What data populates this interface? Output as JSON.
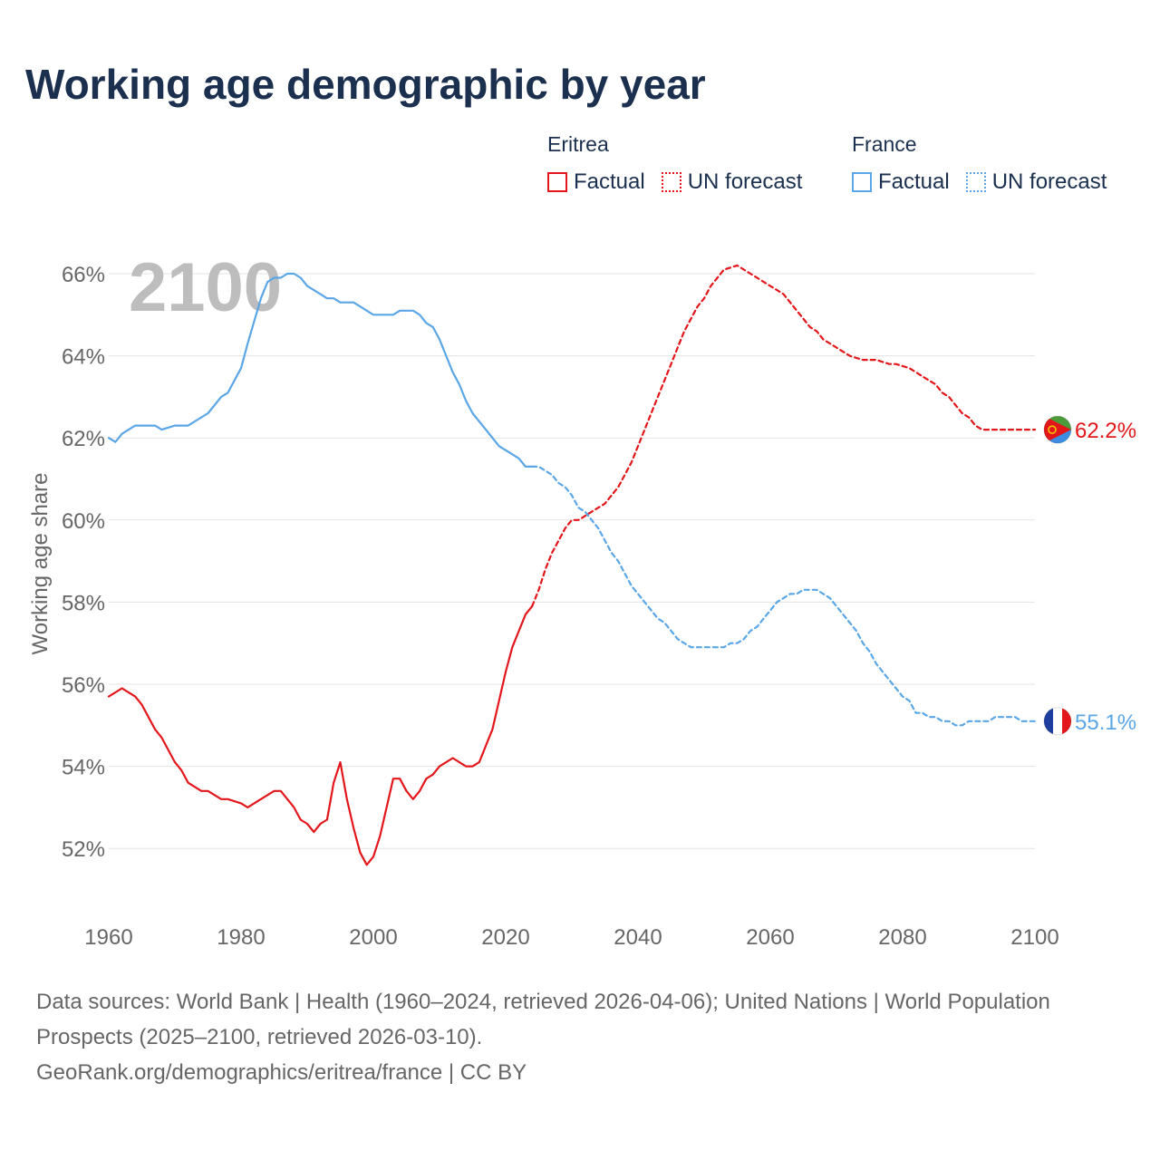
{
  "title": "Working age demographic by year",
  "legend": {
    "groups": [
      {
        "name": "Eritrea",
        "factual": "Factual",
        "forecast": "UN forecast",
        "color": "#e3161b"
      },
      {
        "name": "France",
        "factual": "Factual",
        "forecast": "UN forecast",
        "color": "#5aa6e6"
      }
    ]
  },
  "year_watermark": "2100",
  "source": {
    "line1": "Data sources: World Bank | Health (1960–2024, retrieved 2026-04-06); United Nations | World Population Prospects (2025–2100, retrieved 2026-03-10).",
    "line2": "GeoRank.org/demographics/eritrea/france | CC BY"
  },
  "chart_data": {
    "type": "line",
    "title": "Working age demographic by year",
    "xlabel": "",
    "ylabel": "Working age share",
    "xlim": [
      1960,
      2100
    ],
    "ylim": [
      50.6,
      66.6
    ],
    "x_ticks": [
      1960,
      1980,
      2000,
      2020,
      2040,
      2060,
      2080,
      2100
    ],
    "x_tick_labels": [
      "1960",
      "1980",
      "2000",
      "2020",
      "2040",
      "2060",
      "2080",
      "2100"
    ],
    "y_ticks": [
      52,
      54,
      56,
      58,
      60,
      62,
      64,
      66
    ],
    "y_tick_labels": [
      "52%",
      "54%",
      "56%",
      "58%",
      "60%",
      "62%",
      "64%",
      "66%"
    ],
    "grid": true,
    "series": [
      {
        "name": "Eritrea",
        "segment": "Factual",
        "color": "#e3161b",
        "dashed": false,
        "x": [
          1960,
          1962,
          1964,
          1965,
          1967,
          1968,
          1970,
          1971,
          1972,
          1974,
          1975,
          1977,
          1978,
          1980,
          1981,
          1983,
          1985,
          1986,
          1987,
          1988,
          1989,
          1990,
          1991,
          1992,
          1993,
          1994,
          1995,
          1996,
          1997,
          1998,
          1999,
          2000,
          2001,
          2002,
          2003,
          2004,
          2005,
          2006,
          2007,
          2008,
          2009,
          2010,
          2011,
          2012,
          2013,
          2014,
          2015,
          2016,
          2017,
          2018,
          2019,
          2020,
          2021,
          2022,
          2023,
          2024
        ],
        "y": [
          55.7,
          55.9,
          55.7,
          55.5,
          54.9,
          54.7,
          54.1,
          53.9,
          53.6,
          53.4,
          53.4,
          53.2,
          53.2,
          53.1,
          53.0,
          53.2,
          53.4,
          53.4,
          53.2,
          53.0,
          52.7,
          52.6,
          52.4,
          52.6,
          52.7,
          53.6,
          54.1,
          53.2,
          52.5,
          51.9,
          51.6,
          51.8,
          52.3,
          53.0,
          53.7,
          53.7,
          53.4,
          53.2,
          53.4,
          53.7,
          53.8,
          54.0,
          54.1,
          54.2,
          54.1,
          54.0,
          54.0,
          54.1,
          54.5,
          54.9,
          55.6,
          56.3,
          56.9,
          57.3,
          57.7,
          57.9
        ]
      },
      {
        "name": "Eritrea",
        "segment": "UN forecast",
        "color": "#e3161b",
        "dashed": true,
        "x": [
          2024,
          2025,
          2026,
          2027,
          2028,
          2029,
          2030,
          2031,
          2032,
          2033,
          2034,
          2035,
          2036,
          2037,
          2038,
          2039,
          2040,
          2041,
          2042,
          2043,
          2044,
          2045,
          2046,
          2047,
          2048,
          2049,
          2050,
          2051,
          2052,
          2053,
          2054,
          2055,
          2056,
          2057,
          2058,
          2059,
          2060,
          2061,
          2062,
          2063,
          2064,
          2065,
          2066,
          2067,
          2068,
          2069,
          2070,
          2071,
          2072,
          2073,
          2074,
          2075,
          2076,
          2077,
          2078,
          2079,
          2080,
          2081,
          2082,
          2083,
          2084,
          2085,
          2086,
          2087,
          2088,
          2089,
          2090,
          2091,
          2092,
          2093,
          2094,
          2095,
          2096,
          2097,
          2098,
          2099,
          2100
        ],
        "y": [
          57.9,
          58.3,
          58.8,
          59.2,
          59.5,
          59.8,
          60.0,
          60.0,
          60.1,
          60.2,
          60.3,
          60.4,
          60.6,
          60.8,
          61.1,
          61.4,
          61.8,
          62.2,
          62.6,
          63.0,
          63.4,
          63.8,
          64.2,
          64.6,
          64.9,
          65.2,
          65.4,
          65.7,
          65.9,
          66.1,
          66.15,
          66.2,
          66.1,
          66.0,
          65.9,
          65.8,
          65.7,
          65.6,
          65.5,
          65.3,
          65.1,
          64.9,
          64.7,
          64.6,
          64.4,
          64.3,
          64.2,
          64.1,
          64.0,
          63.95,
          63.9,
          63.9,
          63.9,
          63.85,
          63.8,
          63.8,
          63.75,
          63.7,
          63.6,
          63.5,
          63.4,
          63.3,
          63.1,
          63.0,
          62.8,
          62.6,
          62.5,
          62.3,
          62.2,
          62.2,
          62.2,
          62.2,
          62.2,
          62.2,
          62.2,
          62.2,
          62.2
        ]
      },
      {
        "name": "France",
        "segment": "Factual",
        "color": "#5aa6e6",
        "dashed": false,
        "x": [
          1960,
          1961,
          1962,
          1964,
          1966,
          1967,
          1968,
          1970,
          1972,
          1974,
          1975,
          1976,
          1977,
          1978,
          1980,
          1981,
          1983,
          1984,
          1985,
          1986,
          1987,
          1988,
          1989,
          1990,
          1991,
          1992,
          1993,
          1994,
          1995,
          1996,
          1997,
          1998,
          1999,
          2000,
          2001,
          2002,
          2003,
          2004,
          2005,
          2006,
          2007,
          2008,
          2009,
          2010,
          2011,
          2012,
          2013,
          2014,
          2015,
          2016,
          2017,
          2018,
          2019,
          2020,
          2021,
          2022,
          2023,
          2024
        ],
        "y": [
          62.0,
          61.9,
          62.1,
          62.3,
          62.3,
          62.3,
          62.2,
          62.3,
          62.3,
          62.5,
          62.6,
          62.8,
          63.0,
          63.1,
          63.7,
          64.3,
          65.4,
          65.8,
          65.9,
          65.9,
          66.0,
          66.0,
          65.9,
          65.7,
          65.6,
          65.5,
          65.4,
          65.4,
          65.3,
          65.3,
          65.3,
          65.2,
          65.1,
          65.0,
          65.0,
          65.0,
          65.0,
          65.1,
          65.1,
          65.1,
          65.0,
          64.8,
          64.7,
          64.4,
          64.0,
          63.6,
          63.3,
          62.9,
          62.6,
          62.4,
          62.2,
          62.0,
          61.8,
          61.7,
          61.6,
          61.5,
          61.3,
          61.3
        ]
      },
      {
        "name": "France",
        "segment": "UN forecast",
        "color": "#5aa6e6",
        "dashed": true,
        "x": [
          2024,
          2025,
          2026,
          2027,
          2028,
          2029,
          2030,
          2031,
          2032,
          2033,
          2034,
          2035,
          2036,
          2037,
          2038,
          2039,
          2040,
          2041,
          2042,
          2043,
          2044,
          2045,
          2046,
          2047,
          2048,
          2049,
          2050,
          2051,
          2052,
          2053,
          2054,
          2055,
          2056,
          2057,
          2058,
          2059,
          2060,
          2061,
          2062,
          2063,
          2064,
          2065,
          2066,
          2067,
          2068,
          2069,
          2070,
          2071,
          2072,
          2073,
          2074,
          2075,
          2076,
          2077,
          2078,
          2079,
          2080,
          2081,
          2082,
          2083,
          2084,
          2085,
          2086,
          2087,
          2088,
          2089,
          2090,
          2091,
          2092,
          2093,
          2094,
          2095,
          2096,
          2097,
          2098,
          2099,
          2100
        ],
        "y": [
          61.3,
          61.3,
          61.2,
          61.1,
          60.9,
          60.8,
          60.6,
          60.3,
          60.2,
          60.0,
          59.8,
          59.5,
          59.2,
          59.0,
          58.7,
          58.4,
          58.2,
          58.0,
          57.8,
          57.6,
          57.5,
          57.3,
          57.1,
          57.0,
          56.9,
          56.9,
          56.9,
          56.9,
          56.9,
          56.9,
          57.0,
          57.0,
          57.1,
          57.3,
          57.4,
          57.6,
          57.8,
          58.0,
          58.1,
          58.2,
          58.2,
          58.3,
          58.3,
          58.3,
          58.2,
          58.1,
          57.9,
          57.7,
          57.5,
          57.3,
          57.0,
          56.8,
          56.5,
          56.3,
          56.1,
          55.9,
          55.7,
          55.6,
          55.3,
          55.3,
          55.2,
          55.2,
          55.1,
          55.1,
          55.0,
          55.0,
          55.1,
          55.1,
          55.1,
          55.1,
          55.2,
          55.2,
          55.2,
          55.2,
          55.1,
          55.1,
          55.1
        ]
      }
    ],
    "end_labels": [
      {
        "name": "Eritrea",
        "text": "62.2%",
        "value": 62.2,
        "color": "#e3161b"
      },
      {
        "name": "France",
        "text": "55.1%",
        "value": 55.1,
        "color": "#5aa6e6"
      }
    ]
  }
}
